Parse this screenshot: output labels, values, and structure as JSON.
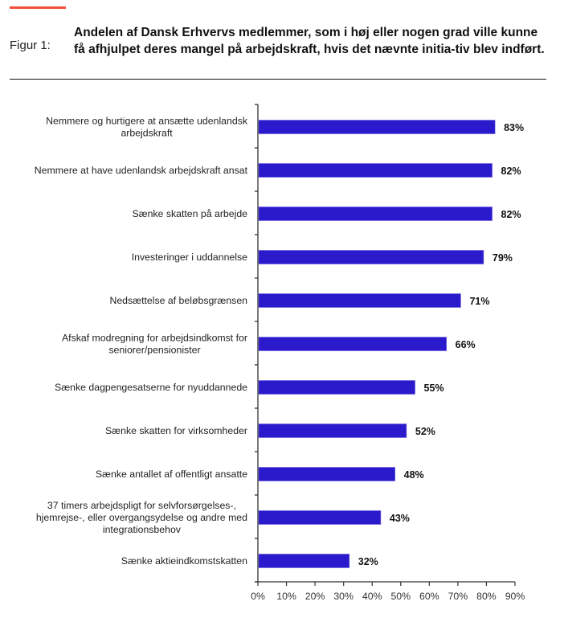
{
  "header": {
    "accent_color": "#f24e3c",
    "figure_label": "Figur 1:",
    "title": "Andelen af Dansk Erhvervs medlemmer, som i høj eller nogen grad ville kunne få afhjulpet deres mangel på arbejdskraft, hvis det nævnte initia-tiv blev indført."
  },
  "chart_data": {
    "type": "bar",
    "orientation": "horizontal",
    "title": "Andelen af Dansk Erhvervs medlemmer, som i høj eller nogen grad ville kunne få afhjulpet deres mangel på arbejdskraft, hvis det nævnte initiativ blev indført.",
    "xlabel": "",
    "ylabel": "",
    "categories": [
      [
        "Nemmere og hurtigere at ansætte udenlandsk",
        "arbejdskraft"
      ],
      [
        "Nemmere at have udenlandsk arbejdskraft ansat"
      ],
      [
        "Sænke skatten på arbejde"
      ],
      [
        "Investeringer i uddannelse"
      ],
      [
        "Nedsættelse af beløbsgrænsen"
      ],
      [
        "Afskaf modregning for arbejdsindkomst for",
        "seniorer/pensionister"
      ],
      [
        "Sænke dagpengesatserne for nyuddannede"
      ],
      [
        "Sænke skatten for virksomheder"
      ],
      [
        "Sænke antallet af offentligt ansatte"
      ],
      [
        "37 timers arbejdspligt for selvforsørgelses-,",
        "hjemrejse-, eller overgangsydelse og andre med",
        "integrationsbehov"
      ],
      [
        "Sænke aktieindkomstskatten"
      ]
    ],
    "values": [
      83,
      82,
      82,
      79,
      71,
      66,
      55,
      52,
      48,
      43,
      32
    ],
    "value_labels": [
      "83%",
      "82%",
      "82%",
      "79%",
      "71%",
      "66%",
      "55%",
      "52%",
      "48%",
      "43%",
      "32%"
    ],
    "xlim": [
      0,
      90
    ],
    "xticks": [
      0,
      10,
      20,
      30,
      40,
      50,
      60,
      70,
      80,
      90
    ],
    "xtick_labels": [
      "0%",
      "10%",
      "20%",
      "30%",
      "40%",
      "50%",
      "60%",
      "70%",
      "80%",
      "90%"
    ],
    "grid": false,
    "legend": "none",
    "bar_color": "#2b1acb",
    "axis_color": "#333333"
  }
}
